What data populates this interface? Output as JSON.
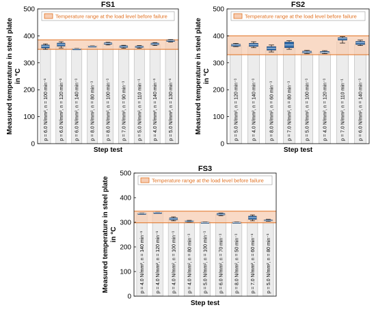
{
  "ylabel": "Measured temperature in steel plate in °C",
  "xlabel": "Step test",
  "legend_label": "Temperature range at the load level before failure",
  "colors": {
    "band_fill": "#f7cdb3",
    "band_edge": "#e07020",
    "box_fill": "#2e6aa8",
    "column_fill": "#ececec"
  },
  "chart_data": [
    {
      "type": "bar",
      "title": "FS1",
      "ylim": [
        0,
        500
      ],
      "yticks": [
        0,
        100,
        200,
        300,
        400,
        500
      ],
      "band": [
        350,
        385
      ],
      "categories": [
        "p = 6.0 N/mm², n = 100 min⁻¹",
        "p = 6.0 N/mm², n = 120 min⁻¹",
        "p = 6.0 N/mm², n = 140 min⁻¹",
        "p = 8.0 N/mm², n = 80 min⁻¹",
        "p = 8.0 N/mm², n = 100 min⁻¹",
        "p = 7.0 N/mm², n = 90 min⁻¹",
        "p = 5.0 N/mm², n = 110 min⁻¹",
        "p = 4.0 N/mm², n = 140 min⁻¹",
        "p = 5.0 N/mm², n = 130 min⁻¹"
      ],
      "boxes": [
        {
          "min": 350,
          "q1": 355,
          "median": 362,
          "q3": 366,
          "max": 370
        },
        {
          "min": 355,
          "q1": 362,
          "median": 368,
          "q3": 373,
          "max": 378
        },
        {
          "min": 349,
          "q1": 350,
          "median": 351,
          "q3": 352,
          "max": 353
        },
        {
          "min": 359,
          "q1": 360,
          "median": 361,
          "q3": 362,
          "max": 363
        },
        {
          "min": 366,
          "q1": 369,
          "median": 372,
          "q3": 374,
          "max": 376
        },
        {
          "min": 354,
          "q1": 357,
          "median": 360,
          "q3": 363,
          "max": 365
        },
        {
          "min": 354,
          "q1": 357,
          "median": 360,
          "q3": 362,
          "max": 364
        },
        {
          "min": 364,
          "q1": 367,
          "median": 370,
          "q3": 373,
          "max": 375
        },
        {
          "min": 377,
          "q1": 379,
          "median": 382,
          "q3": 384,
          "max": 386
        }
      ]
    },
    {
      "type": "bar",
      "title": "FS2",
      "ylim": [
        0,
        500
      ],
      "yticks": [
        0,
        100,
        200,
        300,
        400,
        500
      ],
      "band": [
        330,
        400
      ],
      "categories": [
        "p = 5.0 N/mm², n = 120 min⁻¹",
        "p = 4.0 N/mm², n = 140 min⁻¹",
        "p = 8.0 N/mm², n = 60 min⁻¹",
        "p = 7.0 N/mm², n = 80 min⁻¹",
        "p = 5.0 N/mm², n = 100 min⁻¹",
        "p = 4.0 N/mm², n = 120 min⁻¹",
        "p = 7.0 N/mm², n = 110 min⁻¹",
        "p = 6.0 N/mm², n = 140 min⁻¹"
      ],
      "boxes": [
        {
          "min": 360,
          "q1": 362,
          "median": 366,
          "q3": 369,
          "max": 372
        },
        {
          "min": 356,
          "q1": 361,
          "median": 367,
          "q3": 372,
          "max": 378
        },
        {
          "min": 340,
          "q1": 347,
          "median": 354,
          "q3": 360,
          "max": 366
        },
        {
          "min": 350,
          "q1": 356,
          "median": 366,
          "q3": 377,
          "max": 382
        },
        {
          "min": 334,
          "q1": 337,
          "median": 340,
          "q3": 343,
          "max": 346
        },
        {
          "min": 334,
          "q1": 337,
          "median": 339,
          "q3": 342,
          "max": 345
        },
        {
          "min": 373,
          "q1": 384,
          "median": 389,
          "q3": 393,
          "max": 397
        },
        {
          "min": 364,
          "q1": 368,
          "median": 374,
          "q3": 379,
          "max": 384
        }
      ]
    },
    {
      "type": "bar",
      "title": "FS3",
      "ylim": [
        0,
        500
      ],
      "yticks": [
        0,
        100,
        200,
        300,
        400,
        500
      ],
      "band": [
        298,
        345
      ],
      "categories": [
        "p = 4.0 N/mm², n = 140 min⁻¹",
        "p = 4.0 N/mm², n = 120 min⁻¹",
        "p = 4.0 N/mm², n = 100 min⁻¹",
        "p = 4.0 N/mm², n = 80 min⁻¹",
        "p = 5.0 N/mm², n = 100 min⁻¹",
        "p = 6.0 N/mm², n = 70 min⁻¹",
        "p = 8.0 N/mm², n = 50 min⁻¹",
        "p = 7.0 N/mm², n = 60 min⁻¹",
        "p = 5.0 N/mm², n = 80 min⁻¹"
      ],
      "boxes": [
        {
          "min": 332,
          "q1": 333,
          "median": 335,
          "q3": 336,
          "max": 337
        },
        {
          "min": 338,
          "q1": 339,
          "median": 340,
          "q3": 340,
          "max": 341
        },
        {
          "min": 306,
          "q1": 310,
          "median": 314,
          "q3": 318,
          "max": 322
        },
        {
          "min": 301,
          "q1": 303,
          "median": 305,
          "q3": 306,
          "max": 308
        },
        {
          "min": 297,
          "q1": 298,
          "median": 299,
          "q3": 300,
          "max": 301
        },
        {
          "min": 327,
          "q1": 330,
          "median": 333,
          "q3": 336,
          "max": 338
        },
        {
          "min": 297,
          "q1": 298,
          "median": 299,
          "q3": 300,
          "max": 301
        },
        {
          "min": 306,
          "q1": 312,
          "median": 319,
          "q3": 325,
          "max": 330
        },
        {
          "min": 304,
          "q1": 306,
          "median": 308,
          "q3": 310,
          "max": 312
        }
      ]
    }
  ]
}
